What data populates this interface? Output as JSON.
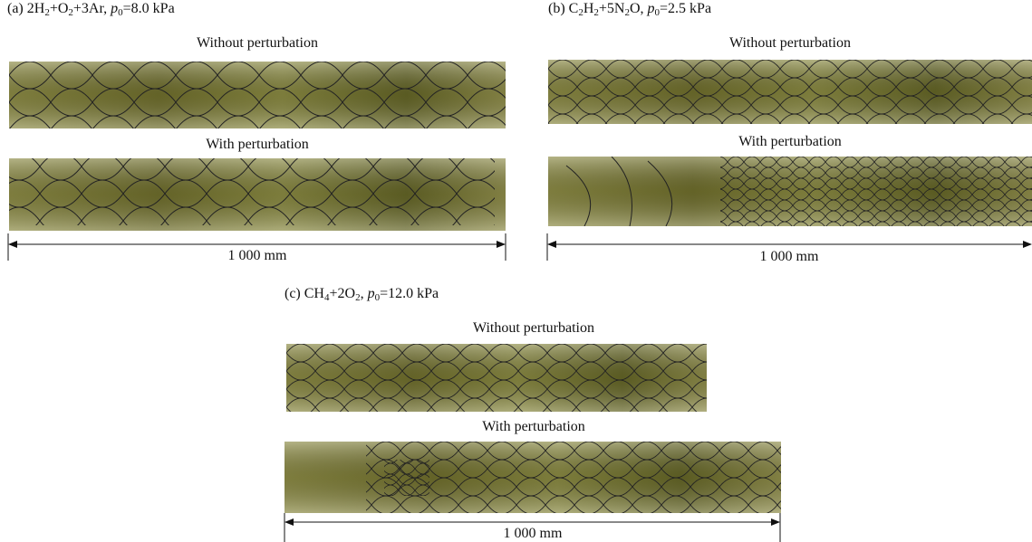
{
  "panels": [
    {
      "label": [
        "(a) 2H",
        "2",
        "+O",
        "2",
        "+3Ar, ",
        "p",
        "0",
        "=8.0 kPa"
      ],
      "top_caption": "Without perturbation",
      "bottom_caption": "With perturbation",
      "scale": "1 000 mm"
    },
    {
      "label": [
        "(b) C",
        "2",
        "H",
        "2",
        "+5N",
        "2",
        "O, ",
        "p",
        "0",
        "=2.5 kPa"
      ],
      "top_caption": "Without perturbation",
      "bottom_caption": "With perturbation",
      "scale": "1 000 mm"
    },
    {
      "label": [
        "(c) CH",
        "4",
        "+2O",
        "2",
        ", ",
        "p",
        "0",
        "=12.0 kPa"
      ],
      "top_caption": "Without perturbation",
      "bottom_caption": "With perturbation",
      "scale": "1 000 mm"
    }
  ]
}
